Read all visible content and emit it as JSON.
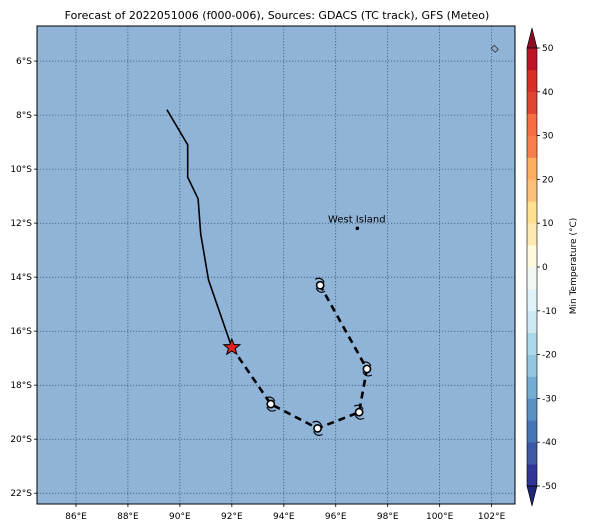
{
  "title": "Forecast of 2022051006 (f000-006), Sources: GDACS (TC track), GFS (Meteo)",
  "map": {
    "lon_range": [
      84.5,
      102.9
    ],
    "lat_range": [
      -22.4,
      -4.7
    ],
    "x_ticks": [
      {
        "value": 86,
        "label": "86°E"
      },
      {
        "value": 88,
        "label": "88°E"
      },
      {
        "value": 90,
        "label": "90°E"
      },
      {
        "value": 92,
        "label": "92°E"
      },
      {
        "value": 94,
        "label": "94°E"
      },
      {
        "value": 96,
        "label": "96°E"
      },
      {
        "value": 98,
        "label": "98°E"
      },
      {
        "value": 100,
        "label": "100°E"
      },
      {
        "value": 102,
        "label": "102°E"
      }
    ],
    "y_ticks": [
      {
        "value": -6,
        "label": "6°S"
      },
      {
        "value": -8,
        "label": "8°S"
      },
      {
        "value": -10,
        "label": "10°S"
      },
      {
        "value": -12,
        "label": "12°S"
      },
      {
        "value": -14,
        "label": "14°S"
      },
      {
        "value": -16,
        "label": "16°S"
      },
      {
        "value": -18,
        "label": "18°S"
      },
      {
        "value": -20,
        "label": "20°S"
      },
      {
        "value": -22,
        "label": "22°S"
      }
    ],
    "ocean_color": "#8fb4d8",
    "grid": true,
    "past_track": [
      [
        89.5,
        -7.8
      ],
      [
        90.3,
        -9.1
      ],
      [
        90.3,
        -10.3
      ],
      [
        90.7,
        -11.1
      ],
      [
        90.8,
        -12.4
      ],
      [
        91.1,
        -14.1
      ],
      [
        92.0,
        -16.6
      ]
    ],
    "forecast_track": [
      [
        92.0,
        -16.6
      ],
      [
        93.5,
        -18.7
      ],
      [
        95.3,
        -19.6
      ],
      [
        96.9,
        -19.0
      ],
      [
        97.2,
        -17.4
      ],
      [
        95.4,
        -14.3
      ]
    ],
    "current_position": [
      92.0,
      -16.6
    ],
    "forecast_points": [
      [
        93.5,
        -18.7
      ],
      [
        95.3,
        -19.6
      ],
      [
        96.9,
        -19.0
      ],
      [
        97.2,
        -17.4
      ],
      [
        95.4,
        -14.3
      ]
    ],
    "place": {
      "name": "West Island",
      "lon": 96.83,
      "lat": -12.19
    },
    "small_island": [
      102.1,
      -5.6
    ]
  },
  "colorbar": {
    "label": "Min Temperature (°C)",
    "ticks": [
      50,
      40,
      30,
      20,
      10,
      0,
      -10,
      -20,
      -30,
      -40,
      -50
    ],
    "levels": [
      -50,
      -45,
      -40,
      -35,
      -30,
      -25,
      -20,
      -15,
      -10,
      -5,
      0,
      5,
      10,
      15,
      20,
      25,
      30,
      35,
      40,
      45,
      50
    ],
    "colors": [
      "#313695",
      "#3e58a5",
      "#4575b4",
      "#5a91c2",
      "#74add1",
      "#94c7df",
      "#abd9e9",
      "#cdeaf2",
      "#e0f3f8",
      "#f2f9f4",
      "#fffadd",
      "#fee9b0",
      "#fee090",
      "#fdc07a",
      "#fdae61",
      "#f67f4b",
      "#f46d43",
      "#df4530",
      "#d73027",
      "#bd1528",
      "#a50026"
    ],
    "under_color": "#1e2677",
    "over_color": "#8a0f24"
  }
}
